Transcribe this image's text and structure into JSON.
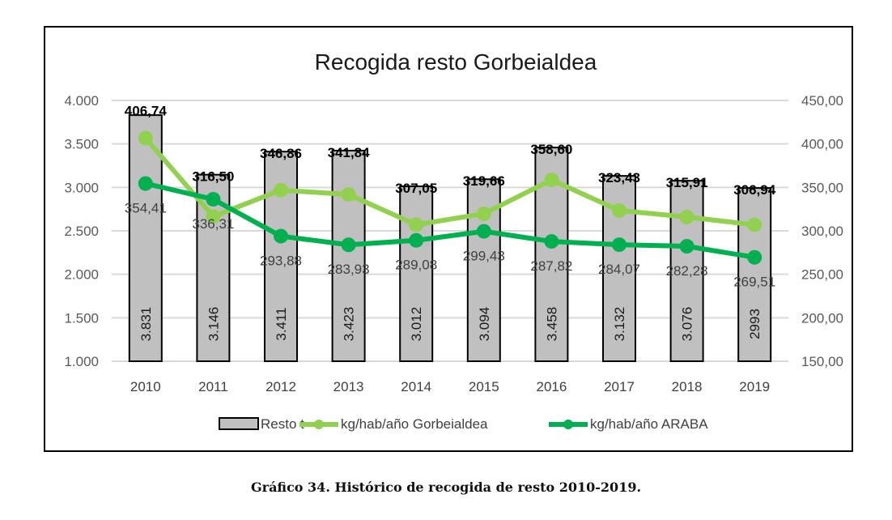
{
  "chart_data": {
    "type": "bar+line",
    "title": "Recogida resto Gorbeialdea",
    "categories": [
      "2010",
      "2011",
      "2012",
      "2013",
      "2014",
      "2015",
      "2016",
      "2017",
      "2018",
      "2019"
    ],
    "left_axis": {
      "range": [
        1000,
        4000
      ],
      "ticks": [
        1000,
        1500,
        2000,
        2500,
        3000,
        3500,
        4000
      ],
      "tick_labels": [
        "1.000",
        "1.500",
        "2.000",
        "2.500",
        "3.000",
        "3.500",
        "4.000"
      ]
    },
    "right_axis": {
      "range": [
        150,
        450
      ],
      "ticks": [
        150,
        200,
        250,
        300,
        350,
        400,
        450
      ],
      "tick_labels": [
        "150,00",
        "200,00",
        "250,00",
        "300,00",
        "350,00",
        "400,00",
        "450,00"
      ]
    },
    "grid": true,
    "legend_position": "bottom",
    "series": [
      {
        "name": "Resto t",
        "type": "bar",
        "axis": "left",
        "color": "#c0c0c0",
        "values": [
          3831,
          3146,
          3411,
          3423,
          3012,
          3094,
          3458,
          3132,
          3076,
          2993
        ],
        "labels": [
          "3.831",
          "3.146",
          "3.411",
          "3.423",
          "3.012",
          "3.094",
          "3.458",
          "3.132",
          "3.076",
          "2993"
        ]
      },
      {
        "name": "kg/hab/año Gorbeialdea",
        "type": "line",
        "axis": "right",
        "color": "#92d050",
        "values": [
          406.74,
          316.5,
          346.86,
          341.84,
          307.05,
          319.66,
          358.6,
          323.43,
          315.91,
          306.94
        ],
        "labels": [
          "406,74",
          "316,50",
          "346,86",
          "341,84",
          "307,05",
          "319,66",
          "358,60",
          "323,43",
          "315,91",
          "306,94"
        ]
      },
      {
        "name": "kg/hab/año ARABA",
        "type": "line",
        "axis": "right",
        "color": "#00b050",
        "values": [
          354.41,
          336.31,
          293.88,
          283.93,
          289.08,
          299.43,
          287.82,
          284.07,
          282.28,
          269.51
        ],
        "labels": [
          "354,41",
          "336,31",
          "293,88",
          "283,93",
          "289,08",
          "299,43",
          "287,82",
          "284,07",
          "282,28",
          "269,51"
        ]
      }
    ]
  },
  "caption": "Gráfico 34. Histórico de recogida de resto 2010-2019."
}
